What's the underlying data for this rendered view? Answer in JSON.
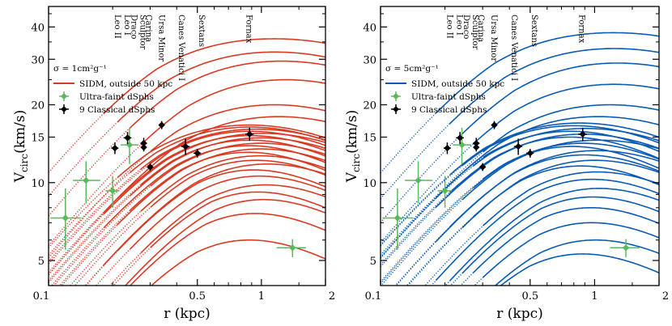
{
  "chart_data": [
    {
      "type": "line",
      "panel": "left",
      "xscale": "log",
      "yscale": "log",
      "xlim": [
        0.1,
        2
      ],
      "ylim": [
        4,
        48
      ],
      "xlabel": "r (kpc)",
      "ylabel": "V",
      "ylabel_sub": "circ",
      "ylabel_unit": "(km/s)",
      "xticks": [
        {
          "v": 0.1,
          "label": "0.1"
        },
        {
          "v": 0.5,
          "label": "0.5"
        },
        {
          "v": 1,
          "label": "1"
        },
        {
          "v": 2,
          "label": "2"
        }
      ],
      "yticks": [
        {
          "v": 5,
          "label": "5"
        },
        {
          "v": 10,
          "label": "10"
        },
        {
          "v": 15,
          "label": "15"
        },
        {
          "v": 20,
          "label": "20"
        },
        {
          "v": 30,
          "label": "30"
        },
        {
          "v": 40,
          "label": "40"
        }
      ],
      "sigma_label": "σ = 1cm²g⁻¹",
      "color": "#d93a24",
      "legend": [
        {
          "kind": "line",
          "label": "SIDM, outside 50 kpc",
          "color": "#d93a24"
        },
        {
          "kind": "diamond",
          "label": "Ultra-faint dSphs",
          "color": "#5cb85c"
        },
        {
          "kind": "diamond",
          "label": "9 Classical dSphs",
          "color": "#000000"
        }
      ],
      "galaxy_labels": [
        {
          "name": "Leo II",
          "r": 0.205
        },
        {
          "name": "Leo I",
          "r": 0.228
        },
        {
          "name": "Draco",
          "r": 0.245
        },
        {
          "name": "Sculptor",
          "r": 0.27
        },
        {
          "name": "Carina",
          "r": 0.287
        },
        {
          "name": "Ursa Minor",
          "r": 0.33
        },
        {
          "name": "Canes Venatici I",
          "r": 0.41
        },
        {
          "name": "Sextans",
          "r": 0.51
        },
        {
          "name": "Fornax",
          "r": 0.85
        }
      ],
      "ultra_faint": [
        {
          "r": 0.12,
          "v": 7.3,
          "xerr": [
            0.018,
            0.022
          ],
          "yerr": [
            1.8,
            2.2
          ]
        },
        {
          "r": 0.15,
          "v": 10.2,
          "xerr": [
            0.02,
            0.025
          ],
          "yerr": [
            1.9,
            1.9
          ]
        },
        {
          "r": 0.2,
          "v": 9.3,
          "xerr": [
            0.015,
            0.015
          ],
          "yerr": [
            1.3,
            1.3
          ]
        },
        {
          "r": 0.24,
          "v": 14.0,
          "xerr": [
            0.022,
            0.025
          ],
          "yerr": [
            2.2,
            2.3
          ]
        },
        {
          "r": 1.4,
          "v": 5.6,
          "xerr": [
            0.22,
            0.22
          ],
          "yerr": [
            0.45,
            0.45
          ]
        }
      ],
      "classical": [
        {
          "r": 0.205,
          "v": 13.6,
          "xerr": [
            0.008,
            0.008
          ],
          "yerr": [
            0.7,
            0.7
          ]
        },
        {
          "r": 0.235,
          "v": 14.9,
          "xerr": [
            0.01,
            0.01
          ],
          "yerr": [
            0.8,
            0.8
          ]
        },
        {
          "r": 0.28,
          "v": 14.2,
          "xerr": [
            0.01,
            0.01
          ],
          "yerr": [
            0.7,
            0.7
          ]
        },
        {
          "r": 0.28,
          "v": 13.7,
          "xerr": [
            0.008,
            0.008
          ],
          "yerr": [
            0.5,
            0.5
          ]
        },
        {
          "r": 0.3,
          "v": 11.5,
          "xerr": [
            0.01,
            0.01
          ],
          "yerr": [
            0.4,
            0.4
          ]
        },
        {
          "r": 0.34,
          "v": 16.7,
          "xerr": [
            0.01,
            0.01
          ],
          "yerr": [
            0.6,
            0.6
          ]
        },
        {
          "r": 0.44,
          "v": 13.8,
          "xerr": [
            0.02,
            0.02
          ],
          "yerr": [
            1.0,
            1.0
          ]
        },
        {
          "r": 0.5,
          "v": 13.0,
          "xerr": [
            0.02,
            0.02
          ],
          "yerr": [
            0.5,
            0.5
          ]
        },
        {
          "r": 0.88,
          "v": 15.4,
          "xerr": [
            0.04,
            0.04
          ],
          "yerr": [
            0.9,
            0.9
          ]
        }
      ],
      "curves": [
        {
          "vmax": 36,
          "rmax": 2.8,
          "rs": 0.32
        },
        {
          "vmax": 32,
          "rmax": 2.5,
          "rs": 0.36
        },
        {
          "vmax": 29.5,
          "rmax": 2.6,
          "rs": 0.4
        },
        {
          "vmax": 25,
          "rmax": 2.5,
          "rs": 0.45
        },
        {
          "vmax": 20,
          "rmax": 2.2,
          "rs": 0.4
        },
        {
          "vmax": 18,
          "rmax": 2.3,
          "rs": 0.42
        },
        {
          "vmax": 16.7,
          "rmax": 1.7,
          "rs": 0.3
        },
        {
          "vmax": 16.4,
          "rmax": 1.6,
          "rs": 0.32
        },
        {
          "vmax": 16.1,
          "rmax": 1.8,
          "rs": 0.33
        },
        {
          "vmax": 15.8,
          "rmax": 1.5,
          "rs": 0.34
        },
        {
          "vmax": 15.5,
          "rmax": 1.9,
          "rs": 0.36
        },
        {
          "vmax": 15.2,
          "rmax": 1.4,
          "rs": 0.36
        },
        {
          "vmax": 14.9,
          "rmax": 1.7,
          "rs": 0.38
        },
        {
          "vmax": 14.6,
          "rmax": 1.3,
          "rs": 0.38
        },
        {
          "vmax": 14.2,
          "rmax": 1.6,
          "rs": 0.4
        },
        {
          "vmax": 13.9,
          "rmax": 1.2,
          "rs": 0.4
        },
        {
          "vmax": 13.5,
          "rmax": 1.5,
          "rs": 0.42
        },
        {
          "vmax": 13.1,
          "rmax": 1.1,
          "rs": 0.42
        },
        {
          "vmax": 12.7,
          "rmax": 1.4,
          "rs": 0.44
        },
        {
          "vmax": 12.2,
          "rmax": 1.2,
          "rs": 0.46
        },
        {
          "vmax": 11.8,
          "rmax": 1.5,
          "rs": 0.48
        },
        {
          "vmax": 11.2,
          "rmax": 1.0,
          "rs": 0.5
        },
        {
          "vmax": 10.6,
          "rmax": 1.1,
          "rs": 0.52
        },
        {
          "vmax": 9.8,
          "rmax": 1.2,
          "rs": 0.55
        },
        {
          "vmax": 9.2,
          "rmax": 0.9,
          "rs": 0.58
        },
        {
          "vmax": 8.6,
          "rmax": 1.0,
          "rs": 0.6
        },
        {
          "vmax": 7.6,
          "rmax": 0.9,
          "rs": 0.55
        },
        {
          "vmax": 6.0,
          "rmax": 0.9,
          "rs": 0.5
        }
      ]
    },
    {
      "type": "line",
      "panel": "right",
      "xscale": "log",
      "yscale": "log",
      "xlim": [
        0.1,
        2
      ],
      "ylim": [
        4,
        48
      ],
      "xlabel": "r (kpc)",
      "ylabel": "V",
      "ylabel_sub": "circ",
      "ylabel_unit": "(km/s)",
      "xticks": [
        {
          "v": 0.1,
          "label": "0.1"
        },
        {
          "v": 0.5,
          "label": "0.5"
        },
        {
          "v": 1,
          "label": "1"
        },
        {
          "v": 2,
          "label": "2"
        }
      ],
      "yticks": [
        {
          "v": 5,
          "label": "5"
        },
        {
          "v": 10,
          "label": "10"
        },
        {
          "v": 15,
          "label": "15"
        },
        {
          "v": 20,
          "label": "20"
        },
        {
          "v": 30,
          "label": "30"
        },
        {
          "v": 40,
          "label": "40"
        }
      ],
      "sigma_label": "σ = 5cm²g⁻¹",
      "color": "#0a5bb5",
      "legend": [
        {
          "kind": "line",
          "label": "SIDM, outside 50 kpc",
          "color": "#0a5bb5"
        },
        {
          "kind": "diamond",
          "label": "Ultra-faint dSphs",
          "color": "#5cb85c"
        },
        {
          "kind": "diamond",
          "label": "9 Classical dSphs",
          "color": "#000000"
        }
      ],
      "galaxy_labels": [
        {
          "name": "Leo II",
          "r": 0.205
        },
        {
          "name": "Leo I",
          "r": 0.228
        },
        {
          "name": "Draco",
          "r": 0.245
        },
        {
          "name": "Sculptor",
          "r": 0.27
        },
        {
          "name": "Carina",
          "r": 0.287
        },
        {
          "name": "Ursa Minor",
          "r": 0.33
        },
        {
          "name": "Canes Venatici I",
          "r": 0.41
        },
        {
          "name": "Sextans",
          "r": 0.51
        },
        {
          "name": "Fornax",
          "r": 0.85
        }
      ],
      "ultra_faint": [
        {
          "r": 0.12,
          "v": 7.3,
          "xerr": [
            0.018,
            0.022
          ],
          "yerr": [
            1.8,
            2.2
          ]
        },
        {
          "r": 0.15,
          "v": 10.2,
          "xerr": [
            0.02,
            0.025
          ],
          "yerr": [
            1.9,
            1.9
          ]
        },
        {
          "r": 0.2,
          "v": 9.3,
          "xerr": [
            0.015,
            0.015
          ],
          "yerr": [
            1.3,
            1.3
          ]
        },
        {
          "r": 0.24,
          "v": 14.0,
          "xerr": [
            0.022,
            0.025
          ],
          "yerr": [
            2.2,
            2.3
          ]
        },
        {
          "r": 1.4,
          "v": 5.6,
          "xerr": [
            0.22,
            0.22
          ],
          "yerr": [
            0.45,
            0.45
          ]
        }
      ],
      "classical": [
        {
          "r": 0.205,
          "v": 13.6,
          "xerr": [
            0.008,
            0.008
          ],
          "yerr": [
            0.7,
            0.7
          ]
        },
        {
          "r": 0.235,
          "v": 14.9,
          "xerr": [
            0.01,
            0.01
          ],
          "yerr": [
            0.8,
            0.8
          ]
        },
        {
          "r": 0.28,
          "v": 14.2,
          "xerr": [
            0.01,
            0.01
          ],
          "yerr": [
            0.7,
            0.7
          ]
        },
        {
          "r": 0.28,
          "v": 13.7,
          "xerr": [
            0.008,
            0.008
          ],
          "yerr": [
            0.5,
            0.5
          ]
        },
        {
          "r": 0.3,
          "v": 11.5,
          "xerr": [
            0.01,
            0.01
          ],
          "yerr": [
            0.4,
            0.4
          ]
        },
        {
          "r": 0.34,
          "v": 16.7,
          "xerr": [
            0.01,
            0.01
          ],
          "yerr": [
            0.6,
            0.6
          ]
        },
        {
          "r": 0.44,
          "v": 13.8,
          "xerr": [
            0.02,
            0.02
          ],
          "yerr": [
            1.0,
            1.0
          ]
        },
        {
          "r": 0.5,
          "v": 13.0,
          "xerr": [
            0.02,
            0.02
          ],
          "yerr": [
            0.5,
            0.5
          ]
        },
        {
          "r": 0.88,
          "v": 15.4,
          "xerr": [
            0.04,
            0.04
          ],
          "yerr": [
            0.9,
            0.9
          ]
        }
      ],
      "curves": [
        {
          "vmax": 38,
          "rmax": 3.0,
          "rs": 0.34
        },
        {
          "vmax": 33,
          "rmax": 2.7,
          "rs": 0.38
        },
        {
          "vmax": 29,
          "rmax": 2.6,
          "rs": 0.42
        },
        {
          "vmax": 24,
          "rmax": 2.4,
          "rs": 0.42
        },
        {
          "vmax": 20,
          "rmax": 2.3,
          "rs": 0.4
        },
        {
          "vmax": 18,
          "rmax": 2.0,
          "rs": 0.36
        },
        {
          "vmax": 17,
          "rmax": 1.6,
          "rs": 0.3
        },
        {
          "vmax": 16.6,
          "rmax": 1.4,
          "rs": 0.3
        },
        {
          "vmax": 16.2,
          "rmax": 1.7,
          "rs": 0.32
        },
        {
          "vmax": 15.8,
          "rmax": 1.2,
          "rs": 0.32
        },
        {
          "vmax": 15.4,
          "rmax": 1.5,
          "rs": 0.34
        },
        {
          "vmax": 15.0,
          "rmax": 1.1,
          "rs": 0.34
        },
        {
          "vmax": 14.6,
          "rmax": 1.9,
          "rs": 0.38
        },
        {
          "vmax": 14.2,
          "rmax": 1.3,
          "rs": 0.38
        },
        {
          "vmax": 13.8,
          "rmax": 1.0,
          "rs": 0.38
        },
        {
          "vmax": 13.3,
          "rmax": 1.6,
          "rs": 0.42
        },
        {
          "vmax": 12.8,
          "rmax": 1.2,
          "rs": 0.42
        },
        {
          "vmax": 12.2,
          "rmax": 1.4,
          "rs": 0.45
        },
        {
          "vmax": 11.6,
          "rmax": 1.0,
          "rs": 0.45
        },
        {
          "vmax": 11.0,
          "rmax": 1.3,
          "rs": 0.5
        },
        {
          "vmax": 10.3,
          "rmax": 1.1,
          "rs": 0.52
        },
        {
          "vmax": 9.5,
          "rmax": 1.2,
          "rs": 0.55
        },
        {
          "vmax": 8.8,
          "rmax": 1.0,
          "rs": 0.56
        },
        {
          "vmax": 8.0,
          "rmax": 0.9,
          "rs": 0.58
        },
        {
          "vmax": 7.0,
          "rmax": 1.0,
          "rs": 0.55
        },
        {
          "vmax": 6.0,
          "rmax": 1.1,
          "rs": 0.55
        },
        {
          "vmax": 5.3,
          "rmax": 0.9,
          "rs": 0.5
        }
      ]
    }
  ]
}
